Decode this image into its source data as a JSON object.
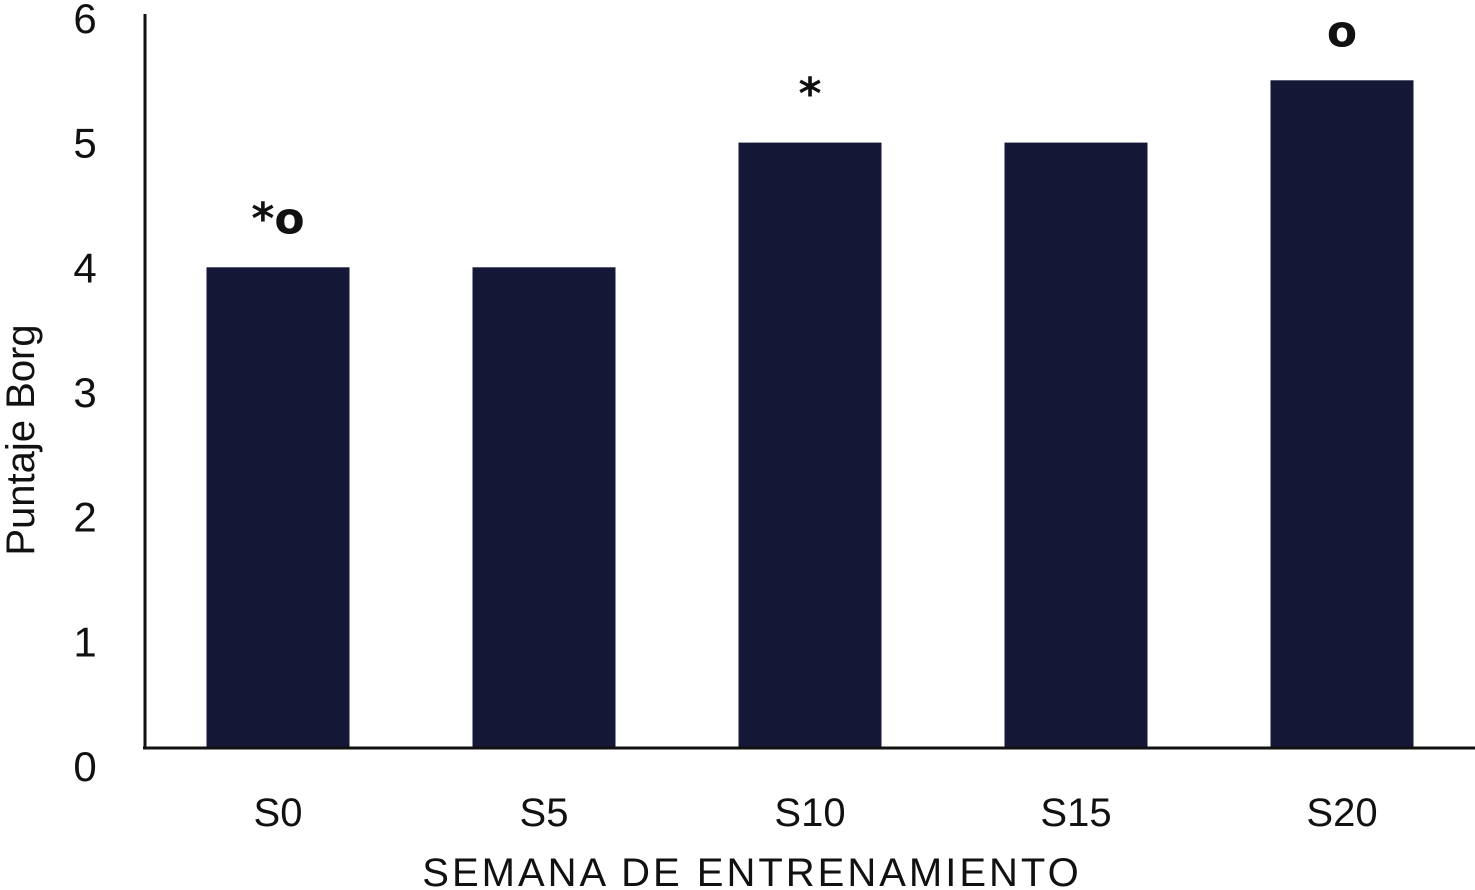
{
  "chart_data": {
    "type": "bar",
    "title": "",
    "xlabel": "SEMANA DE ENTRENAMIENTO",
    "ylabel": "Puntaje Borg",
    "categories": [
      "S0",
      "S5",
      "S10",
      "S15",
      "S20"
    ],
    "values": [
      4,
      4,
      5,
      5,
      5.5
    ],
    "ylim": [
      0,
      6
    ],
    "yticks": [
      "0",
      "1",
      "2",
      "3",
      "4",
      "5",
      "6"
    ],
    "annotations": [
      {
        "category": "S0",
        "text": "*o"
      },
      {
        "category": "S10",
        "text": "*"
      },
      {
        "category": "S20",
        "text": "o"
      }
    ],
    "grid": false,
    "legend": "none",
    "bar_color": "#141735"
  }
}
